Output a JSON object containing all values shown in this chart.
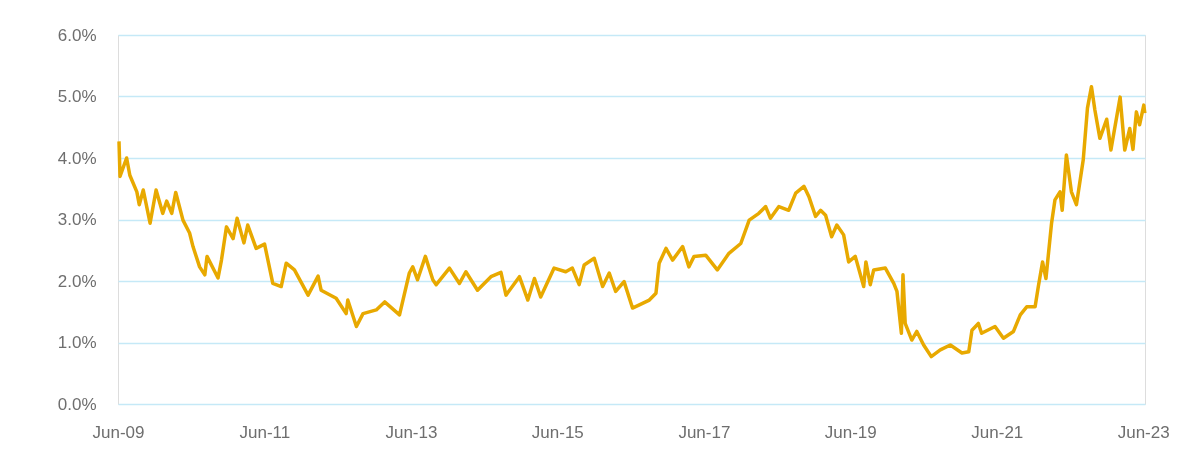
{
  "chart_data": {
    "type": "line",
    "x": [
      "2009-06-06",
      "2009-06-11",
      "2009-07-14",
      "2009-07-30",
      "2009-09-03",
      "2009-09-15",
      "2009-10-05",
      "2009-11-08",
      "2009-12-08",
      "2010-01-10",
      "2010-01-30",
      "2010-02-24",
      "2010-03-16",
      "2010-04-21",
      "2010-05-24",
      "2010-06-10",
      "2010-07-13",
      "2010-08-08",
      "2010-08-19",
      "2010-10-13",
      "2010-10-30",
      "2010-11-24",
      "2010-12-27",
      "2011-01-16",
      "2011-02-19",
      "2011-03-10",
      "2011-04-21",
      "2011-06-02",
      "2011-07-13",
      "2011-08-24",
      "2011-09-18",
      "2011-10-29",
      "2012-01-05",
      "2012-02-24",
      "2012-03-10",
      "2012-05-24",
      "2012-07-13",
      "2012-07-21",
      "2012-09-02",
      "2012-10-05",
      "2012-12-10",
      "2013-01-21",
      "2013-04-05",
      "2013-05-24",
      "2013-06-10",
      "2013-07-04",
      "2013-08-12",
      "2013-09-18",
      "2013-10-05",
      "2013-12-10",
      "2014-01-29",
      "2014-03-02",
      "2014-04-29",
      "2014-07-05",
      "2014-08-24",
      "2014-09-18",
      "2014-11-24",
      "2015-01-05",
      "2015-02-07",
      "2015-03-10",
      "2015-05-16",
      "2015-07-13",
      "2015-08-15",
      "2015-09-18",
      "2015-10-13",
      "2015-12-02",
      "2016-01-13",
      "2016-02-15",
      "2016-03-18",
      "2016-04-29",
      "2016-06-10",
      "2016-09-02",
      "2016-10-05",
      "2016-10-21",
      "2016-11-24",
      "2016-12-27",
      "2017-02-15",
      "2017-03-18",
      "2017-04-13",
      "2017-06-10",
      "2017-08-07",
      "2017-10-04",
      "2017-12-02",
      "2018-01-13",
      "2018-03-02",
      "2018-04-05",
      "2018-04-29",
      "2018-06-10",
      "2018-07-29",
      "2018-09-02",
      "2018-10-13",
      "2018-11-07",
      "2018-12-10",
      "2019-01-04",
      "2019-01-29",
      "2019-02-28",
      "2019-03-26",
      "2019-04-29",
      "2019-05-24",
      "2019-06-26",
      "2019-08-07",
      "2019-08-18",
      "2019-09-09",
      "2019-09-26",
      "2019-11-23",
      "2020-01-04",
      "2020-01-20",
      "2020-02-11",
      "2020-02-19",
      "2020-03-01",
      "2020-04-03",
      "2020-04-28",
      "2020-06-01",
      "2020-07-09",
      "2020-08-23",
      "2020-10-12",
      "2020-12-09",
      "2021-01-12",
      "2021-01-28",
      "2021-03-01",
      "2021-03-17",
      "2021-05-23",
      "2021-07-04",
      "2021-08-23",
      "2021-09-26",
      "2021-10-28",
      "2021-12-09",
      "2021-12-25",
      "2022-01-15",
      "2022-02-01",
      "2022-03-01",
      "2022-03-18",
      "2022-04-12",
      "2022-04-23",
      "2022-05-14",
      "2022-06-08",
      "2022-07-03",
      "2022-08-06",
      "2022-08-27",
      "2022-09-16",
      "2022-10-03",
      "2022-10-28",
      "2022-12-01",
      "2022-12-22",
      "2023-02-06",
      "2023-03-01",
      "2023-03-26",
      "2023-04-11",
      "2023-04-28",
      "2023-05-14",
      "2023-06-04",
      "2023-06-09"
    ],
    "series": [
      {
        "color": "#e8a900",
        "values": [
          4.27,
          3.7,
          4.0,
          3.72,
          3.45,
          3.24,
          3.48,
          2.94,
          3.48,
          3.1,
          3.3,
          3.1,
          3.44,
          2.99,
          2.78,
          2.56,
          2.23,
          2.1,
          2.4,
          2.05,
          2.34,
          2.88,
          2.69,
          3.02,
          2.62,
          2.91,
          2.53,
          2.6,
          1.96,
          1.91,
          2.29,
          2.18,
          1.77,
          2.08,
          1.85,
          1.72,
          1.47,
          1.69,
          1.26,
          1.47,
          1.53,
          1.66,
          1.45,
          2.13,
          2.23,
          2.02,
          2.4,
          2.02,
          1.94,
          2.21,
          1.96,
          2.15,
          1.85,
          2.07,
          2.14,
          1.77,
          2.07,
          1.69,
          2.04,
          1.74,
          2.21,
          2.15,
          2.21,
          1.94,
          2.26,
          2.37,
          1.91,
          2.13,
          1.83,
          1.99,
          1.56,
          1.69,
          1.8,
          2.29,
          2.53,
          2.34,
          2.56,
          2.23,
          2.4,
          2.42,
          2.18,
          2.45,
          2.61,
          2.99,
          3.1,
          3.21,
          3.02,
          3.21,
          3.15,
          3.43,
          3.54,
          3.37,
          3.05,
          3.15,
          3.07,
          2.72,
          2.91,
          2.75,
          2.31,
          2.4,
          1.91,
          2.31,
          1.94,
          2.18,
          2.21,
          1.96,
          1.83,
          1.15,
          2.1,
          1.31,
          1.04,
          1.18,
          0.96,
          0.77,
          0.88,
          0.96,
          0.83,
          0.85,
          1.2,
          1.31,
          1.15,
          1.26,
          1.07,
          1.18,
          1.45,
          1.58,
          1.58,
          1.91,
          2.31,
          2.04,
          2.94,
          3.32,
          3.45,
          3.15,
          4.05,
          3.45,
          3.24,
          3.97,
          4.81,
          5.16,
          4.78,
          4.32,
          4.63,
          4.13,
          4.99,
          4.13,
          4.48,
          4.14,
          4.75,
          4.54,
          4.86,
          4.73
        ]
      }
    ],
    "xlim": [
      "2009-06-01",
      "2023-06-10"
    ],
    "xticks": [
      {
        "value": "2009-06-01",
        "label": "Jun-09"
      },
      {
        "value": "2011-06-01",
        "label": "Jun-11"
      },
      {
        "value": "2013-06-01",
        "label": "Jun-13"
      },
      {
        "value": "2015-06-01",
        "label": "Jun-15"
      },
      {
        "value": "2017-06-01",
        "label": "Jun-17"
      },
      {
        "value": "2019-06-01",
        "label": "Jun-19"
      },
      {
        "value": "2021-06-01",
        "label": "Jun-21"
      },
      {
        "value": "2023-06-01",
        "label": "Jun-23"
      }
    ],
    "ylim": [
      0,
      6
    ],
    "yticks": [
      {
        "value": 0,
        "label": "0.0%"
      },
      {
        "value": 1,
        "label": "1.0%"
      },
      {
        "value": 2,
        "label": "2.0%"
      },
      {
        "value": 3,
        "label": "3.0%"
      },
      {
        "value": 4,
        "label": "4.0%"
      },
      {
        "value": 5,
        "label": "5.0%"
      },
      {
        "value": 6,
        "label": "6.0%"
      }
    ],
    "grid": "y",
    "marker": "none",
    "line_style": "solid"
  }
}
